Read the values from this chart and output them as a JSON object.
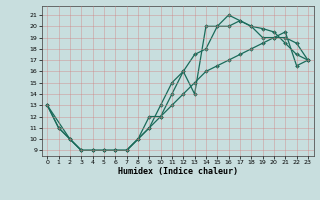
{
  "xlabel": "Humidex (Indice chaleur)",
  "bg_color": "#c8dede",
  "grid_color": "#b0c8c8",
  "line_color": "#1a6b5a",
  "xlim": [
    -0.5,
    23.5
  ],
  "ylim": [
    8.5,
    21.8
  ],
  "yticks": [
    9,
    10,
    11,
    12,
    13,
    14,
    15,
    16,
    17,
    18,
    19,
    20,
    21
  ],
  "xticks": [
    0,
    1,
    2,
    3,
    4,
    5,
    6,
    7,
    8,
    9,
    10,
    11,
    12,
    13,
    14,
    15,
    16,
    17,
    18,
    19,
    20,
    21,
    22,
    23
  ],
  "line1_x": [
    0,
    1,
    2,
    3,
    4,
    5,
    6,
    7,
    8,
    9,
    10,
    11,
    12,
    13,
    14,
    15,
    16,
    17,
    18,
    19,
    20,
    21,
    22,
    23
  ],
  "line1_y": [
    13,
    11,
    10,
    9,
    9,
    9,
    9,
    9,
    10,
    12,
    12,
    14,
    16,
    14,
    20,
    20,
    21,
    20.5,
    20,
    19.8,
    19.5,
    18.5,
    17.5,
    17
  ],
  "line2_x": [
    0,
    1,
    2,
    3,
    4,
    5,
    6,
    7,
    8,
    9,
    10,
    11,
    12,
    13,
    14,
    15,
    16,
    17,
    18,
    19,
    20,
    21,
    22,
    23
  ],
  "line2_y": [
    13,
    11,
    10,
    9,
    9,
    9,
    9,
    9,
    10,
    11,
    13,
    15,
    16,
    17.5,
    18,
    20,
    20,
    20.5,
    20,
    19,
    19,
    19,
    18.5,
    17
  ],
  "line3_x": [
    0,
    2,
    3,
    4,
    5,
    6,
    7,
    8,
    9,
    10,
    11,
    12,
    13,
    14,
    15,
    16,
    17,
    18,
    19,
    20,
    21,
    22,
    23
  ],
  "line3_y": [
    13,
    10,
    9,
    9,
    9,
    9,
    9,
    10,
    11,
    12,
    13,
    14,
    15,
    16,
    16.5,
    17,
    17.5,
    18,
    18.5,
    19,
    19.5,
    16.5,
    17
  ]
}
